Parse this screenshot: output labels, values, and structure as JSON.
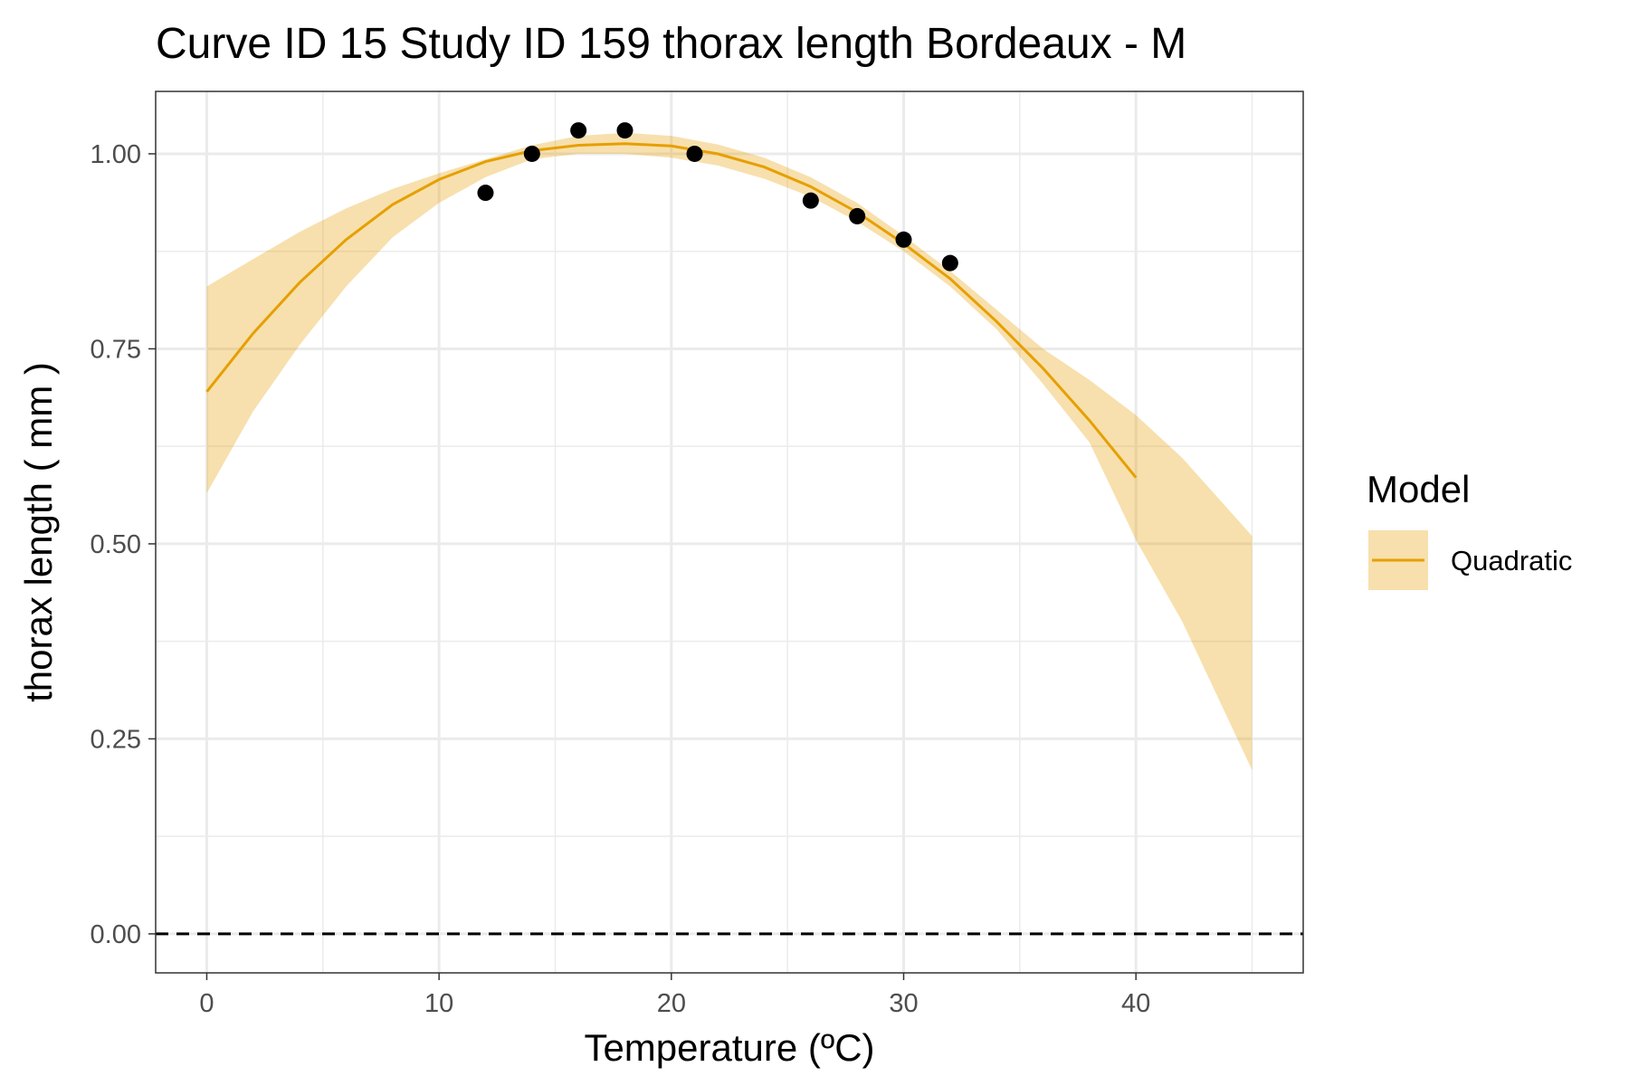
{
  "chart_data": {
    "type": "line",
    "title": "Curve ID 15 Study ID 159 thorax length Bordeaux - M",
    "xlabel": "Temperature (ºC)",
    "ylabel": "thorax length ( mm )",
    "xlim": [
      -2.2,
      47.2
    ],
    "ylim": [
      -0.05,
      1.08
    ],
    "x_ticks": [
      0,
      10,
      20,
      30,
      40
    ],
    "x_tick_labels": [
      "0",
      "10",
      "20",
      "30",
      "40"
    ],
    "y_ticks": [
      0,
      0.25,
      0.5,
      0.75,
      1.0
    ],
    "y_tick_labels": [
      "0.00",
      "0.25",
      "0.50",
      "0.75",
      "1.00"
    ],
    "x_minor_ticks": [
      5,
      15,
      25,
      35,
      45
    ],
    "y_minor_ticks": [
      0.125,
      0.375,
      0.625,
      0.875
    ],
    "grid": true,
    "reference_line": {
      "y": 0,
      "style": "dashed",
      "color": "#000000"
    },
    "points": [
      {
        "x": 12,
        "y": 0.95
      },
      {
        "x": 14,
        "y": 1.0
      },
      {
        "x": 16,
        "y": 1.03
      },
      {
        "x": 18,
        "y": 1.03
      },
      {
        "x": 21,
        "y": 1.0
      },
      {
        "x": 26,
        "y": 0.94
      },
      {
        "x": 28,
        "y": 0.92
      },
      {
        "x": 30,
        "y": 0.89
      },
      {
        "x": 32,
        "y": 0.86
      }
    ],
    "fit": {
      "name": "Quadratic",
      "color": "#E69F00",
      "x": [
        0,
        2,
        4,
        6,
        8,
        10,
        12,
        14,
        16,
        18,
        20,
        22,
        24,
        26,
        28,
        30,
        32,
        34,
        36,
        38,
        40
      ],
      "y": [
        0.695,
        0.77,
        0.835,
        0.89,
        0.935,
        0.967,
        0.99,
        1.004,
        1.011,
        1.013,
        1.01,
        1.0,
        0.983,
        0.958,
        0.925,
        0.885,
        0.84,
        0.785,
        0.725,
        0.658,
        0.585
      ]
    },
    "band": {
      "color": "#E69F00",
      "opacity": 0.32,
      "x": [
        0,
        2,
        4,
        6,
        8,
        10,
        12,
        14,
        16,
        18,
        20,
        22,
        24,
        26,
        28,
        30,
        32,
        34,
        36,
        38,
        40,
        42,
        45
      ],
      "upper": [
        0.83,
        0.865,
        0.9,
        0.93,
        0.955,
        0.975,
        0.993,
        1.011,
        1.023,
        1.027,
        1.023,
        1.012,
        0.995,
        0.97,
        0.937,
        0.895,
        0.85,
        0.8,
        0.75,
        0.71,
        0.665,
        0.61,
        0.51
      ],
      "lower": [
        0.565,
        0.67,
        0.755,
        0.83,
        0.893,
        0.937,
        0.97,
        0.993,
        1.0,
        1.0,
        0.995,
        0.985,
        0.968,
        0.945,
        0.913,
        0.875,
        0.83,
        0.775,
        0.705,
        0.63,
        0.505,
        0.4,
        0.21
      ]
    },
    "legend": {
      "title": "Model",
      "entries": [
        "Quadratic"
      ],
      "position": "right"
    }
  }
}
